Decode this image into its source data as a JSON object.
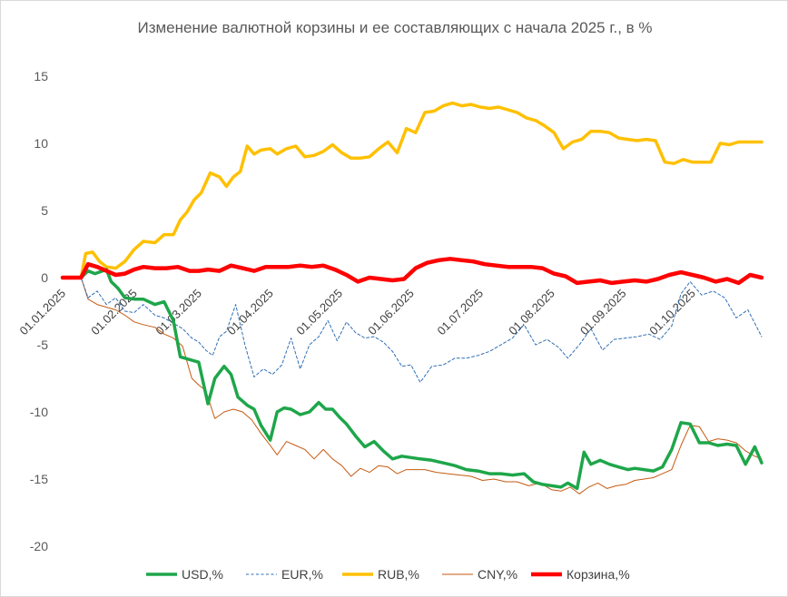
{
  "chart_data": {
    "type": "line",
    "title": "Изменение валютной корзины и ее составляющих с начала 2025 г., в %",
    "xlabel": "",
    "ylabel": "",
    "ylim": [
      -20,
      15
    ],
    "y_ticks": [
      "15",
      "10",
      "5",
      "0",
      "-5",
      "-10",
      "-15",
      "-20"
    ],
    "y_tick_values": [
      15,
      10,
      5,
      0,
      -5,
      -10,
      -15,
      -20
    ],
    "x_range": [
      "2025-01-01",
      "2025-10-31"
    ],
    "x_tick_labels": [
      "01.01.2025",
      "01.02.2025",
      "01.03.2025",
      "01.04.2025",
      "01.05.2025",
      "01.06.2025",
      "01.07.2025",
      "01.08.2025",
      "01.09.2025",
      "01.10.2025"
    ],
    "x_tick_dates": [
      "2025-01-01",
      "2025-02-01",
      "2025-03-01",
      "2025-04-01",
      "2025-05-01",
      "2025-06-01",
      "2025-07-01",
      "2025-08-01",
      "2025-09-01",
      "2025-10-01"
    ],
    "grid": {
      "horizontal": false,
      "vertical": false
    },
    "legend_position": "bottom",
    "series": [
      {
        "name": "USD,%",
        "color": "#1ea64a",
        "style": "solid-thick",
        "x": [
          "2025-01-01",
          "2025-01-09",
          "2025-01-12",
          "2025-01-15",
          "2025-01-20",
          "2025-01-22",
          "2025-01-25",
          "2025-01-28",
          "2025-02-01",
          "2025-02-05",
          "2025-02-10",
          "2025-02-14",
          "2025-02-18",
          "2025-02-21",
          "2025-02-25",
          "2025-03-01",
          "2025-03-05",
          "2025-03-08",
          "2025-03-12",
          "2025-03-15",
          "2025-03-18",
          "2025-03-22",
          "2025-03-25",
          "2025-03-28",
          "2025-04-01",
          "2025-04-04",
          "2025-04-07",
          "2025-04-10",
          "2025-04-14",
          "2025-04-18",
          "2025-04-22",
          "2025-04-25",
          "2025-04-28",
          "2025-05-01",
          "2025-05-04",
          "2025-05-08",
          "2025-05-12",
          "2025-05-16",
          "2025-05-20",
          "2025-05-24",
          "2025-05-28",
          "2025-06-01",
          "2025-06-05",
          "2025-06-10",
          "2025-06-15",
          "2025-06-20",
          "2025-06-25",
          "2025-06-30",
          "2025-07-05",
          "2025-07-10",
          "2025-07-15",
          "2025-07-20",
          "2025-07-24",
          "2025-07-28",
          "2025-08-01",
          "2025-08-05",
          "2025-08-08",
          "2025-08-12",
          "2025-08-15",
          "2025-08-18",
          "2025-08-22",
          "2025-08-26",
          "2025-08-30",
          "2025-09-03",
          "2025-09-06",
          "2025-09-10",
          "2025-09-14",
          "2025-09-18",
          "2025-09-22",
          "2025-09-26",
          "2025-09-30",
          "2025-10-04",
          "2025-10-08",
          "2025-10-12",
          "2025-10-16",
          "2025-10-20",
          "2025-10-24",
          "2025-10-28",
          "2025-10-31"
        ],
        "values": [
          0,
          0,
          0.5,
          0.3,
          0.6,
          -0.3,
          -0.8,
          -1.5,
          -1.6,
          -1.6,
          -2.0,
          -1.8,
          -3.2,
          -5.9,
          -6.1,
          -6.3,
          -9.4,
          -7.5,
          -6.6,
          -7.2,
          -8.9,
          -9.5,
          -9.8,
          -11.0,
          -12.1,
          -10.0,
          -9.7,
          -9.8,
          -10.2,
          -10.0,
          -9.3,
          -9.8,
          -9.8,
          -10.4,
          -10.9,
          -11.8,
          -12.6,
          -12.2,
          -12.9,
          -13.5,
          -13.3,
          -13.4,
          -13.5,
          -13.6,
          -13.8,
          -14.0,
          -14.3,
          -14.4,
          -14.6,
          -14.6,
          -14.7,
          -14.6,
          -15.2,
          -15.4,
          -15.5,
          -15.6,
          -15.3,
          -15.7,
          -13.0,
          -13.9,
          -13.6,
          -13.9,
          -14.1,
          -14.3,
          -14.2,
          -14.3,
          -14.4,
          -14.1,
          -12.8,
          -10.8,
          -10.9,
          -12.3,
          -12.3,
          -12.5,
          -12.4,
          -12.5,
          -13.9,
          -12.6,
          -13.8
        ]
      },
      {
        "name": "EUR,%",
        "color": "#2f6eb5",
        "style": "dashed",
        "x": [
          "2025-01-01",
          "2025-01-09",
          "2025-01-12",
          "2025-01-16",
          "2025-01-20",
          "2025-01-24",
          "2025-01-28",
          "2025-02-01",
          "2025-02-05",
          "2025-02-10",
          "2025-02-14",
          "2025-02-18",
          "2025-02-22",
          "2025-02-26",
          "2025-03-01",
          "2025-03-04",
          "2025-03-07",
          "2025-03-10",
          "2025-03-13",
          "2025-03-17",
          "2025-03-21",
          "2025-03-25",
          "2025-03-29",
          "2025-04-02",
          "2025-04-06",
          "2025-04-10",
          "2025-04-14",
          "2025-04-18",
          "2025-04-22",
          "2025-04-26",
          "2025-04-30",
          "2025-05-04",
          "2025-05-08",
          "2025-05-12",
          "2025-05-16",
          "2025-05-20",
          "2025-05-24",
          "2025-05-28",
          "2025-06-01",
          "2025-06-05",
          "2025-06-10",
          "2025-06-15",
          "2025-06-20",
          "2025-06-25",
          "2025-06-30",
          "2025-07-05",
          "2025-07-10",
          "2025-07-15",
          "2025-07-20",
          "2025-07-25",
          "2025-07-30",
          "2025-08-04",
          "2025-08-08",
          "2025-08-13",
          "2025-08-18",
          "2025-08-23",
          "2025-08-28",
          "2025-09-02",
          "2025-09-07",
          "2025-09-12",
          "2025-09-17",
          "2025-09-22",
          "2025-09-26",
          "2025-09-30",
          "2025-10-05",
          "2025-10-10",
          "2025-10-15",
          "2025-10-20",
          "2025-10-25",
          "2025-10-31"
        ],
        "values": [
          0,
          0,
          -1.5,
          -1.0,
          -2.0,
          -1.5,
          -2.5,
          -2.6,
          -2.0,
          -2.8,
          -3.0,
          -3.4,
          -3.8,
          -4.5,
          -4.8,
          -5.4,
          -5.8,
          -4.4,
          -4.0,
          -2.0,
          -5.0,
          -7.4,
          -6.8,
          -7.2,
          -6.5,
          -4.5,
          -6.8,
          -5.0,
          -4.4,
          -3.2,
          -4.7,
          -3.3,
          -4.1,
          -4.5,
          -4.4,
          -4.8,
          -5.5,
          -6.6,
          -6.5,
          -7.8,
          -6.6,
          -6.5,
          -6.0,
          -6.0,
          -5.8,
          -5.5,
          -5.0,
          -4.5,
          -3.5,
          -5.0,
          -4.6,
          -5.2,
          -6.0,
          -5.0,
          -3.8,
          -5.4,
          -4.6,
          -4.5,
          -4.4,
          -4.2,
          -4.6,
          -3.6,
          -1.2,
          -0.3,
          -1.3,
          -1.0,
          -1.5,
          -3.0,
          -2.4,
          -4.4
        ]
      },
      {
        "name": "RUB,%",
        "color": "#ffc000",
        "style": "solid-thick",
        "x": [
          "2025-01-01",
          "2025-01-09",
          "2025-01-11",
          "2025-01-14",
          "2025-01-17",
          "2025-01-20",
          "2025-01-24",
          "2025-01-28",
          "2025-02-01",
          "2025-02-05",
          "2025-02-10",
          "2025-02-14",
          "2025-02-18",
          "2025-02-21",
          "2025-02-24",
          "2025-02-27",
          "2025-03-02",
          "2025-03-06",
          "2025-03-10",
          "2025-03-13",
          "2025-03-16",
          "2025-03-19",
          "2025-03-22",
          "2025-03-25",
          "2025-03-28",
          "2025-04-01",
          "2025-04-04",
          "2025-04-08",
          "2025-04-12",
          "2025-04-16",
          "2025-04-20",
          "2025-04-24",
          "2025-04-28",
          "2025-05-02",
          "2025-05-06",
          "2025-05-10",
          "2025-05-14",
          "2025-05-18",
          "2025-05-22",
          "2025-05-26",
          "2025-05-30",
          "2025-06-03",
          "2025-06-07",
          "2025-06-11",
          "2025-06-15",
          "2025-06-19",
          "2025-06-23",
          "2025-06-27",
          "2025-07-01",
          "2025-07-05",
          "2025-07-09",
          "2025-07-13",
          "2025-07-17",
          "2025-07-21",
          "2025-07-25",
          "2025-07-29",
          "2025-08-02",
          "2025-08-06",
          "2025-08-10",
          "2025-08-14",
          "2025-08-18",
          "2025-08-22",
          "2025-08-26",
          "2025-08-30",
          "2025-09-03",
          "2025-09-07",
          "2025-09-11",
          "2025-09-15",
          "2025-09-19",
          "2025-09-23",
          "2025-09-27",
          "2025-10-01",
          "2025-10-05",
          "2025-10-09",
          "2025-10-13",
          "2025-10-17",
          "2025-10-21",
          "2025-10-25",
          "2025-10-31"
        ],
        "values": [
          0,
          0,
          1.8,
          1.9,
          1.2,
          0.8,
          0.7,
          1.2,
          2.1,
          2.7,
          2.6,
          3.2,
          3.2,
          4.3,
          4.9,
          5.8,
          6.3,
          7.8,
          7.5,
          6.8,
          7.5,
          7.9,
          9.8,
          9.2,
          9.5,
          9.6,
          9.2,
          9.6,
          9.8,
          9.0,
          9.1,
          9.4,
          9.9,
          9.3,
          8.9,
          8.9,
          9.0,
          9.6,
          10.1,
          9.3,
          11.1,
          10.8,
          12.3,
          12.4,
          12.8,
          13.0,
          12.8,
          12.9,
          12.7,
          12.6,
          12.7,
          12.5,
          12.3,
          11.9,
          11.7,
          11.3,
          10.8,
          9.6,
          10.1,
          10.3,
          10.9,
          10.9,
          10.8,
          10.4,
          10.3,
          10.2,
          10.3,
          10.2,
          8.6,
          8.5,
          8.8,
          8.6,
          8.6,
          8.6,
          10.0,
          9.9,
          10.1,
          10.1,
          10.1
        ]
      },
      {
        "name": "CNY,%",
        "color": "#c55a11",
        "style": "solid-thin",
        "x": [
          "2025-01-01",
          "2025-01-09",
          "2025-01-12",
          "2025-01-16",
          "2025-01-20",
          "2025-01-24",
          "2025-01-28",
          "2025-02-01",
          "2025-02-05",
          "2025-02-10",
          "2025-02-14",
          "2025-02-18",
          "2025-02-22",
          "2025-02-26",
          "2025-03-01",
          "2025-03-04",
          "2025-03-08",
          "2025-03-12",
          "2025-03-16",
          "2025-03-20",
          "2025-03-24",
          "2025-03-28",
          "2025-04-01",
          "2025-04-04",
          "2025-04-08",
          "2025-04-12",
          "2025-04-16",
          "2025-04-20",
          "2025-04-24",
          "2025-04-28",
          "2025-05-02",
          "2025-05-06",
          "2025-05-10",
          "2025-05-14",
          "2025-05-18",
          "2025-05-22",
          "2025-05-26",
          "2025-05-30",
          "2025-06-03",
          "2025-06-07",
          "2025-06-12",
          "2025-06-17",
          "2025-06-22",
          "2025-06-27",
          "2025-07-02",
          "2025-07-07",
          "2025-07-12",
          "2025-07-17",
          "2025-07-22",
          "2025-07-27",
          "2025-08-01",
          "2025-08-05",
          "2025-08-09",
          "2025-08-13",
          "2025-08-17",
          "2025-08-21",
          "2025-08-25",
          "2025-08-29",
          "2025-09-02",
          "2025-09-06",
          "2025-09-10",
          "2025-09-14",
          "2025-09-18",
          "2025-09-22",
          "2025-09-26",
          "2025-09-30",
          "2025-10-04",
          "2025-10-08",
          "2025-10-12",
          "2025-10-16",
          "2025-10-20",
          "2025-10-24",
          "2025-10-28",
          "2025-10-31"
        ],
        "values": [
          0,
          0,
          -1.6,
          -2.0,
          -2.2,
          -2.4,
          -2.8,
          -3.3,
          -3.5,
          -3.7,
          -4.2,
          -4.5,
          -5.1,
          -7.5,
          -8.0,
          -8.4,
          -10.5,
          -10.0,
          -9.8,
          -10.0,
          -10.6,
          -11.6,
          -12.5,
          -13.2,
          -12.2,
          -12.5,
          -12.8,
          -13.5,
          -12.8,
          -13.5,
          -14.0,
          -14.8,
          -14.2,
          -14.5,
          -14.0,
          -14.1,
          -14.6,
          -14.3,
          -14.3,
          -14.3,
          -14.5,
          -14.6,
          -14.7,
          -14.8,
          -15.1,
          -15.0,
          -15.2,
          -15.2,
          -15.5,
          -15.3,
          -15.8,
          -15.9,
          -15.6,
          -16.1,
          -15.6,
          -15.3,
          -15.7,
          -15.5,
          -15.4,
          -15.1,
          -15.0,
          -14.9,
          -14.6,
          -14.3,
          -12.5,
          -11.0,
          -11.1,
          -12.2,
          -12.0,
          -12.1,
          -12.3,
          -12.9,
          -13.3,
          -13.5
        ]
      },
      {
        "name": "Корзина,%",
        "color": "#ff0000",
        "style": "solid-thicker",
        "x": [
          "2025-01-01",
          "2025-01-09",
          "2025-01-12",
          "2025-01-16",
          "2025-01-20",
          "2025-01-24",
          "2025-01-28",
          "2025-02-01",
          "2025-02-05",
          "2025-02-10",
          "2025-02-15",
          "2025-02-20",
          "2025-02-25",
          "2025-03-01",
          "2025-03-05",
          "2025-03-10",
          "2025-03-15",
          "2025-03-20",
          "2025-03-25",
          "2025-03-30",
          "2025-04-04",
          "2025-04-09",
          "2025-04-14",
          "2025-04-19",
          "2025-04-24",
          "2025-04-29",
          "2025-05-04",
          "2025-05-09",
          "2025-05-14",
          "2025-05-19",
          "2025-05-24",
          "2025-05-29",
          "2025-06-03",
          "2025-06-08",
          "2025-06-13",
          "2025-06-18",
          "2025-06-23",
          "2025-06-28",
          "2025-07-03",
          "2025-07-08",
          "2025-07-13",
          "2025-07-18",
          "2025-07-23",
          "2025-07-28",
          "2025-08-02",
          "2025-08-07",
          "2025-08-12",
          "2025-08-17",
          "2025-08-22",
          "2025-08-27",
          "2025-09-01",
          "2025-09-06",
          "2025-09-11",
          "2025-09-16",
          "2025-09-21",
          "2025-09-26",
          "2025-10-01",
          "2025-10-06",
          "2025-10-11",
          "2025-10-16",
          "2025-10-21",
          "2025-10-26",
          "2025-10-31"
        ],
        "values": [
          0,
          0,
          1.0,
          0.8,
          0.5,
          0.2,
          0.3,
          0.6,
          0.8,
          0.7,
          0.7,
          0.8,
          0.5,
          0.5,
          0.6,
          0.5,
          0.9,
          0.7,
          0.5,
          0.8,
          0.8,
          0.8,
          0.9,
          0.8,
          0.9,
          0.6,
          0.2,
          -0.3,
          0.0,
          -0.1,
          -0.2,
          -0.1,
          0.7,
          1.1,
          1.3,
          1.4,
          1.3,
          1.2,
          1.0,
          0.9,
          0.8,
          0.8,
          0.8,
          0.7,
          0.3,
          0.1,
          -0.4,
          -0.3,
          -0.2,
          -0.4,
          -0.3,
          -0.2,
          -0.3,
          -0.1,
          0.2,
          0.4,
          0.2,
          0.0,
          -0.3,
          -0.1,
          -0.4,
          0.2,
          0.0
        ]
      }
    ]
  }
}
